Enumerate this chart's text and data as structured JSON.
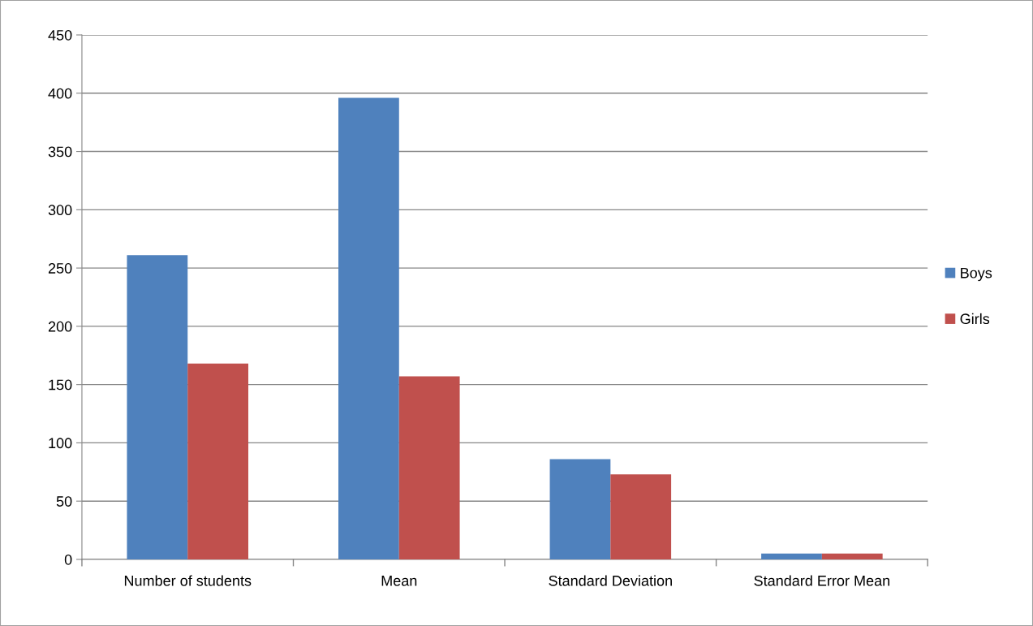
{
  "chart_data": {
    "type": "bar",
    "categories": [
      "Number of students",
      "Mean",
      "Standard Deviation",
      "Standard Error Mean"
    ],
    "series": [
      {
        "name": "Boys",
        "color": "#4f81bd",
        "values": [
          261,
          396,
          86,
          5
        ]
      },
      {
        "name": "Girls",
        "color": "#c0504d",
        "values": [
          168,
          157,
          73,
          5
        ]
      }
    ],
    "ylim": [
      0,
      450
    ],
    "yticks": [
      0,
      50,
      100,
      150,
      200,
      250,
      300,
      350,
      400,
      450
    ],
    "grid": "y",
    "legend": "right"
  }
}
